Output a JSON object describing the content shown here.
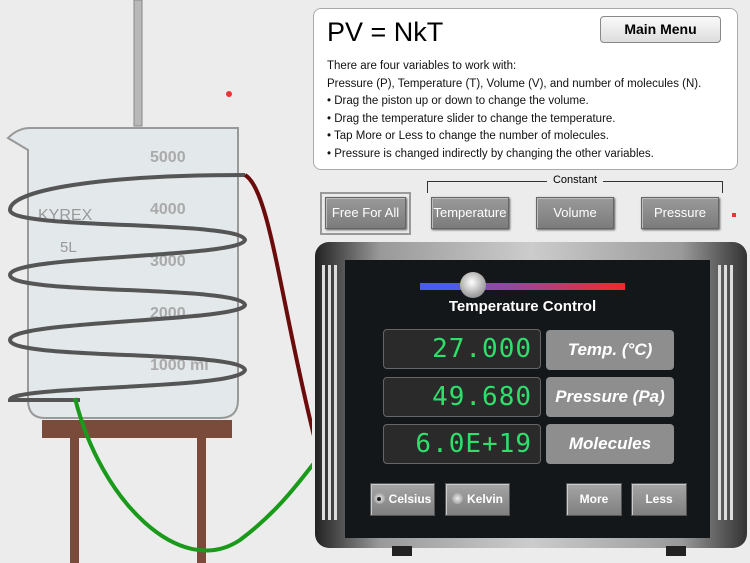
{
  "info": {
    "title": "PV = NkT",
    "lines": [
      "There are four variables to work with:",
      "Pressure (P), Temperature (T), Volume (V), and number of molecules (N).",
      "• Drag the piston up or down to change the volume.",
      "• Drag the temperature slider to change the temperature.",
      "• Tap More or Less to change the number of molecules.",
      "• Pressure is changed indirectly by changing the other variables."
    ]
  },
  "main_menu": "Main Menu",
  "constant_label": "Constant",
  "modes": {
    "free": "Free For All",
    "temperature": "Temperature",
    "volume": "Volume",
    "pressure": "Pressure"
  },
  "beaker": {
    "brand": "KYREX",
    "size": "5L",
    "marks": [
      "5000",
      "4000",
      "3000",
      "2000",
      "1000 ml"
    ]
  },
  "control": {
    "title": "Temperature Control",
    "slider_fraction": 0.26,
    "slider_colors": [
      "#4a5cf0",
      "#f02a2a"
    ]
  },
  "readouts": [
    {
      "value": "27.000",
      "label": "Temp. (°C)"
    },
    {
      "value": "49.680",
      "label": "Pressure (Pa)"
    },
    {
      "value": "6.0E+19",
      "label": "Molecules"
    }
  ],
  "units": {
    "celsius": "Celsius",
    "kelvin": "Kelvin",
    "selected": "celsius"
  },
  "molecule_buttons": {
    "more": "More",
    "less": "Less"
  },
  "colors": {
    "display_text": "#2de06a",
    "wire_red": "#6b0c0c",
    "wire_green": "#1a9a1a"
  }
}
